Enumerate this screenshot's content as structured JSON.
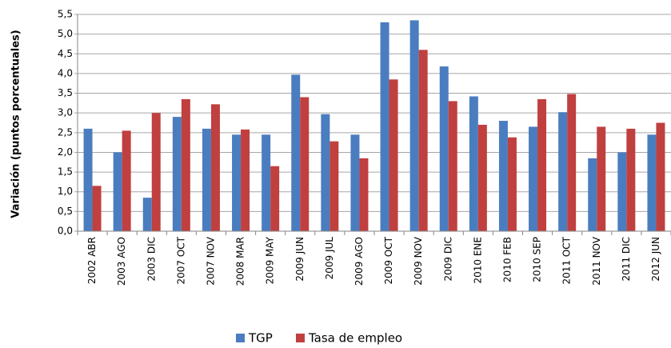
{
  "chart_data": {
    "type": "bar",
    "y_label": "Variación (puntos porcentuales)",
    "categories": [
      "2002 ABR",
      "2003 AGO",
      "2003 DIC",
      "2007 OCT",
      "2007 NOV",
      "2008 MAR",
      "2009 MAY",
      "2009 JUN",
      "2009 JUL",
      "2009 AGO",
      "2009 OCT",
      "2009 NOV",
      "2009 DIC",
      "2010 ENE",
      "2010 FEB",
      "2010 SEP",
      "2011 OCT",
      "2011 NOV",
      "2011 DIC",
      "2012 JUN"
    ],
    "series": [
      {
        "name": "TGP",
        "color": "#4a7dc0",
        "values": [
          2.6,
          2.0,
          0.85,
          2.9,
          2.6,
          2.45,
          2.45,
          3.97,
          2.97,
          2.45,
          5.3,
          5.35,
          4.18,
          3.42,
          2.8,
          2.65,
          3.02,
          1.85,
          2.0,
          2.45
        ]
      },
      {
        "name": "Tasa de empleo",
        "color": "#c0403f",
        "values": [
          1.15,
          2.55,
          3.0,
          3.35,
          3.22,
          2.58,
          1.65,
          3.4,
          2.28,
          1.85,
          3.85,
          4.6,
          3.3,
          2.7,
          2.38,
          3.35,
          3.48,
          2.65,
          2.6,
          2.75
        ]
      }
    ],
    "ylim": [
      0,
      5.5
    ],
    "yticks": [
      {
        "value": 0,
        "label": "0,0"
      },
      {
        "value": 0.5,
        "label": "0,5"
      },
      {
        "value": 1,
        "label": "1,0"
      },
      {
        "value": 1.5,
        "label": "1,5"
      },
      {
        "value": 2,
        "label": "2,0"
      },
      {
        "value": 2.5,
        "label": "2,5"
      },
      {
        "value": 3,
        "label": "3,0"
      },
      {
        "value": 3.5,
        "label": "3,5"
      },
      {
        "value": 4,
        "label": "4,0"
      },
      {
        "value": 4.5,
        "label": "4,5"
      },
      {
        "value": 5,
        "label": "5,0"
      },
      {
        "value": 5.5,
        "label": "5,5"
      }
    ],
    "grid": true,
    "legend": "bottom"
  }
}
